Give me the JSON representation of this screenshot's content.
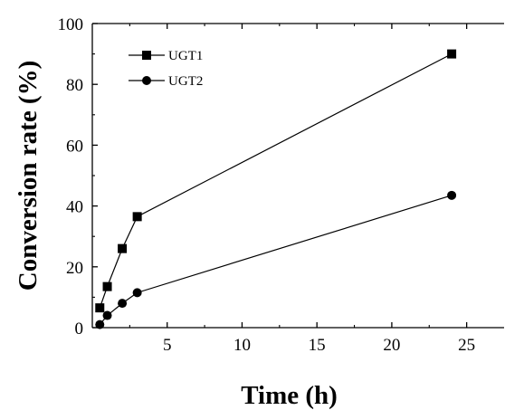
{
  "chart_data": {
    "type": "line",
    "xlabel": "Time (h)",
    "ylabel": "Conversion rate (%)",
    "xlim": [
      0,
      27.5
    ],
    "ylim": [
      0,
      100
    ],
    "xticks": [
      5,
      10,
      15,
      20,
      25
    ],
    "yticks": [
      0,
      20,
      40,
      60,
      80,
      100
    ],
    "grid": false,
    "legend_position": "top-left",
    "series": [
      {
        "name": "UGT1",
        "marker": "square",
        "color": "#000000",
        "x": [
          0.5,
          1,
          2,
          3,
          24
        ],
        "y": [
          6.5,
          13.5,
          26,
          36.5,
          90
        ]
      },
      {
        "name": "UGT2",
        "marker": "circle",
        "color": "#000000",
        "x": [
          0.5,
          1,
          2,
          3,
          24
        ],
        "y": [
          1,
          4,
          8,
          11.5,
          43.5
        ]
      }
    ]
  }
}
